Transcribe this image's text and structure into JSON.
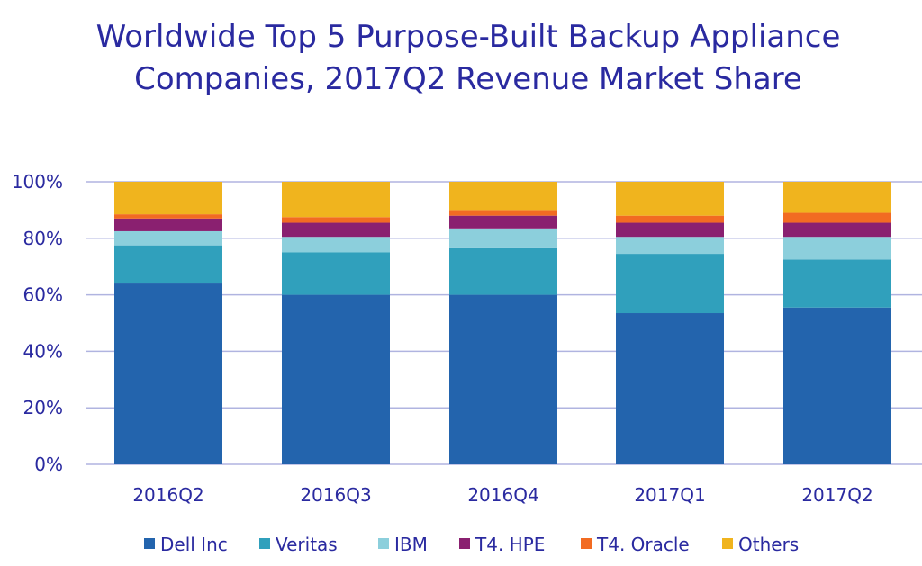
{
  "chart_data": {
    "type": "bar",
    "stacked": true,
    "percent_stacked": true,
    "title": "Worldwide Top 5 Purpose-Built Backup Appliance Companies, 2017Q2 Revenue Market Share",
    "categories": [
      "2016Q2",
      "2016Q3",
      "2016Q4",
      "2017Q1",
      "2017Q2"
    ],
    "series": [
      {
        "name": "Dell Inc",
        "color": "#2364ad",
        "values": [
          64,
          60,
          60,
          53.5,
          55.5
        ]
      },
      {
        "name": "Veritas",
        "color": "#30a0bc",
        "values": [
          13.5,
          15,
          16.5,
          21,
          17
        ]
      },
      {
        "name": "IBM",
        "color": "#8ccfdc",
        "values": [
          5,
          5.5,
          7,
          6,
          8
        ]
      },
      {
        "name": "T4. HPE",
        "color": "#8a2070",
        "values": [
          4.5,
          5,
          4.5,
          5,
          5
        ]
      },
      {
        "name": "T4. Oracle",
        "color": "#f26b22",
        "values": [
          1.5,
          2,
          2,
          2.5,
          3.5
        ]
      },
      {
        "name": "Others",
        "color": "#f0b41e",
        "values": [
          11.5,
          12.5,
          10,
          12,
          11
        ]
      }
    ],
    "ylim": [
      0,
      100
    ],
    "yticks": [
      "0%",
      "20%",
      "40%",
      "60%",
      "80%",
      "100%"
    ],
    "grid": true,
    "legend_position": "bottom",
    "xlabel": "",
    "ylabel": ""
  }
}
